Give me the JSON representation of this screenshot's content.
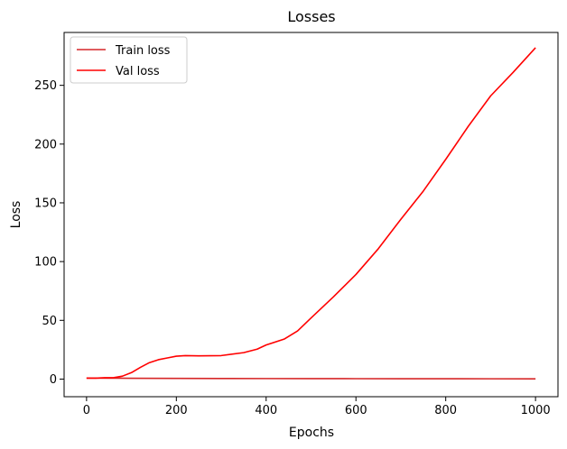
{
  "chart_data": {
    "type": "line",
    "title": "Losses",
    "xlabel": "Epochs",
    "ylabel": "Loss",
    "xlim": [
      -50,
      1050
    ],
    "ylim": [
      -15,
      295
    ],
    "xticks": [
      0,
      200,
      400,
      600,
      800,
      1000
    ],
    "yticks": [
      0,
      50,
      100,
      150,
      200,
      250
    ],
    "grid": false,
    "legend_position": "top-left",
    "series": [
      {
        "name": "Train loss",
        "color": "#d62728",
        "x": [
          0,
          50,
          100,
          200,
          300,
          400,
          500,
          600,
          700,
          800,
          900,
          1000
        ],
        "y": [
          0.9,
          0.8,
          0.7,
          0.6,
          0.5,
          0.45,
          0.4,
          0.35,
          0.3,
          0.28,
          0.25,
          0.22
        ]
      },
      {
        "name": "Val loss",
        "color": "#ff0000",
        "x": [
          0,
          20,
          40,
          60,
          80,
          100,
          120,
          140,
          160,
          180,
          200,
          220,
          250,
          300,
          350,
          380,
          400,
          440,
          470,
          500,
          550,
          600,
          650,
          700,
          750,
          800,
          850,
          900,
          950,
          1000
        ],
        "y": [
          0.8,
          0.8,
          1.2,
          1.2,
          2.5,
          5.5,
          10,
          14,
          16.5,
          18,
          19.5,
          20,
          19.8,
          20,
          22.5,
          25.5,
          29,
          34,
          41,
          52,
          70,
          89,
          111,
          136,
          160,
          187,
          215,
          241,
          261,
          282
        ]
      }
    ]
  }
}
